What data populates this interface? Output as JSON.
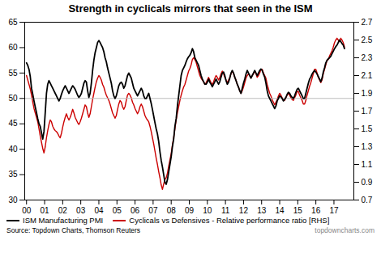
{
  "chart_data": {
    "type": "line",
    "title": "Strength in cyclicals mirrors that seen in the ISM",
    "caption": "Source: Topdown Charts, Thomson Reuters",
    "watermark": "topdowncharts.com",
    "grid": false,
    "legend": "bottom",
    "hline": 50,
    "hline_color": "#bbbbbb",
    "xlim": [
      1999.9,
      2018.1
    ],
    "xticks": [
      {
        "value": 2000,
        "label": "00"
      },
      {
        "value": 2001,
        "label": "01"
      },
      {
        "value": 2002,
        "label": "02"
      },
      {
        "value": 2003,
        "label": "03"
      },
      {
        "value": 2004,
        "label": "04"
      },
      {
        "value": 2005,
        "label": "05"
      },
      {
        "value": 2006,
        "label": "06"
      },
      {
        "value": 2007,
        "label": "07"
      },
      {
        "value": 2008,
        "label": "08"
      },
      {
        "value": 2009,
        "label": "09"
      },
      {
        "value": 2010,
        "label": "10"
      },
      {
        "value": 2011,
        "label": "11"
      },
      {
        "value": 2012,
        "label": "12"
      },
      {
        "value": 2013,
        "label": "13"
      },
      {
        "value": 2014,
        "label": "14"
      },
      {
        "value": 2015,
        "label": "15"
      },
      {
        "value": 2016,
        "label": "16"
      },
      {
        "value": 2017,
        "label": "17"
      }
    ],
    "ylim": [
      30,
      65
    ],
    "yticks": [
      30,
      35,
      40,
      45,
      50,
      55,
      60,
      65
    ],
    "y2lim": [
      0.7,
      2.7
    ],
    "y2ticks": [
      0.7,
      0.9,
      1.1,
      1.3,
      1.5,
      1.7,
      1.9,
      2.1,
      2.3,
      2.5,
      2.7
    ],
    "x": [
      2000,
      2000.069,
      2000.1379,
      2000.2069,
      2000.2758,
      2000.3448,
      2000.4137,
      2000.4827,
      2000.5516,
      2000.6206,
      2000.6895,
      2000.7585,
      2000.8274,
      2000.8964,
      2000.9653,
      2001.0343,
      2001.1032,
      2001.1722,
      2001.2412,
      2001.3101,
      2001.3791,
      2001.448,
      2001.517,
      2001.5859,
      2001.6549,
      2001.7238,
      2001.7928,
      2001.8617,
      2001.9307,
      2001.9996,
      2002.0686,
      2002.1375,
      2002.2065,
      2002.2754,
      2002.3444,
      2002.4134,
      2002.4823,
      2002.5513,
      2002.6202,
      2002.6892,
      2002.7581,
      2002.8271,
      2002.896,
      2002.965,
      2003.0339,
      2003.1029,
      2003.1718,
      2003.2408,
      2003.3097,
      2003.3787,
      2003.4476,
      2003.5166,
      2003.5856,
      2003.6545,
      2003.7235,
      2003.7924,
      2003.8614,
      2003.9303,
      2003.9993,
      2004.0682,
      2004.1372,
      2004.2061,
      2004.2751,
      2004.344,
      2004.413,
      2004.4819,
      2004.5509,
      2004.6198,
      2004.6888,
      2004.7578,
      2004.8267,
      2004.8957,
      2004.9646,
      2005.0336,
      2005.1025,
      2005.1715,
      2005.2404,
      2005.3094,
      2005.3783,
      2005.4473,
      2005.5162,
      2005.5852,
      2005.6541,
      2005.7231,
      2005.792,
      2005.861,
      2005.93,
      2005.9989,
      2006.0679,
      2006.1368,
      2006.2058,
      2006.2747,
      2006.3437,
      2006.4126,
      2006.4816,
      2006.5505,
      2006.6195,
      2006.6884,
      2006.7574,
      2006.8263,
      2006.8953,
      2006.9642,
      2007.0332,
      2007.1022,
      2007.1711,
      2007.2401,
      2007.309,
      2007.378,
      2007.4469,
      2007.5159,
      2007.5848,
      2007.6538,
      2007.7227,
      2007.7917,
      2007.8606,
      2007.9296,
      2007.9985,
      2008.0675,
      2008.1364,
      2008.2054,
      2008.2744,
      2008.3433,
      2008.4123,
      2008.4812,
      2008.5502,
      2008.6191,
      2008.6881,
      2008.757,
      2008.826,
      2008.8949,
      2008.9639,
      2009.0328,
      2009.1018,
      2009.1707,
      2009.2397,
      2009.3086,
      2009.3776,
      2009.4466,
      2009.5155,
      2009.5845,
      2009.6534,
      2009.7224,
      2009.7913,
      2009.8603,
      2009.9292,
      2009.9982,
      2010.0671,
      2010.1361,
      2010.205,
      2010.274,
      2010.3429,
      2010.4119,
      2010.4808,
      2010.5498,
      2010.6188,
      2010.6877,
      2010.7567,
      2010.8256,
      2010.8946,
      2010.9635,
      2011.0325,
      2011.1014,
      2011.1704,
      2011.2393,
      2011.3083,
      2011.3772,
      2011.4462,
      2011.5151,
      2011.5841,
      2011.653,
      2011.722,
      2011.791,
      2011.8599,
      2011.9289,
      2011.9978,
      2012.0668,
      2012.1357,
      2012.2047,
      2012.2736,
      2012.3426,
      2012.4115,
      2012.4805,
      2012.5494,
      2012.6184,
      2012.6873,
      2012.7563,
      2012.8252,
      2012.8942,
      2012.9632,
      2013.0321,
      2013.1011,
      2013.17,
      2013.239,
      2013.3079,
      2013.3769,
      2013.4458,
      2013.5148,
      2013.5837,
      2013.6527,
      2013.7216,
      2013.7906,
      2013.8595,
      2013.9285,
      2013.9974,
      2014.0664,
      2014.1354,
      2014.2043,
      2014.2733,
      2014.3422,
      2014.4112,
      2014.4801,
      2014.5491,
      2014.618,
      2014.687,
      2014.7559,
      2014.8249,
      2014.8938,
      2014.9628,
      2015.0317,
      2015.1007,
      2015.1696,
      2015.2386,
      2015.3076,
      2015.3765,
      2015.4455,
      2015.5144,
      2015.5834,
      2015.6523,
      2015.7213,
      2015.7902,
      2015.8592,
      2015.9281,
      2015.9971,
      2016.066,
      2016.135,
      2016.2039,
      2016.2729,
      2016.3418,
      2016.4108,
      2016.4798,
      2016.5487,
      2016.6177,
      2016.6866,
      2016.7556,
      2016.8245,
      2016.8935,
      2016.9624,
      2017.0314,
      2017.1003,
      2017.1693,
      2017.2382,
      2017.3072,
      2017.3761,
      2017.4451,
      2017.514,
      2017.583
    ],
    "series": [
      {
        "name": "ISM Manufacturing PMI",
        "color": "#000000",
        "values": [
          57.0,
          56.5,
          55.7,
          54.3,
          52.0,
          50.8,
          49.5,
          48.3,
          47.2,
          46.0,
          45.0,
          44.5,
          43.2,
          42.0,
          43.5,
          47.2,
          51.0,
          52.8,
          53.5,
          53.0,
          52.5,
          52.0,
          51.5,
          51.0,
          50.5,
          50.0,
          49.5,
          50.0,
          50.8,
          51.5,
          52.0,
          52.5,
          52.0,
          51.5,
          51.0,
          51.5,
          52.0,
          52.5,
          52.2,
          51.8,
          51.2,
          50.6,
          50.2,
          50.5,
          51.0,
          52.0,
          53.0,
          53.5,
          53.2,
          51.5,
          50.2,
          51.0,
          53.0,
          55.5,
          57.5,
          59.0,
          60.0,
          61.0,
          61.4,
          61.0,
          60.5,
          60.0,
          59.2,
          58.0,
          57.2,
          56.0,
          55.0,
          54.0,
          53.0,
          51.5,
          50.5,
          50.0,
          50.5,
          51.5,
          52.5,
          53.0,
          53.2,
          52.8,
          52.0,
          52.5,
          53.5,
          54.5,
          55.0,
          54.5,
          54.0,
          53.0,
          52.0,
          51.5,
          51.0,
          50.5,
          51.0,
          51.5,
          52.0,
          51.5,
          50.5,
          50.0,
          50.0,
          50.5,
          51.0,
          50.0,
          49.0,
          47.8,
          46.5,
          45.2,
          44.0,
          43.0,
          41.5,
          39.5,
          37.8,
          36.5,
          35.0,
          33.5,
          33.1,
          34.0,
          35.5,
          37.0,
          38.5,
          40.5,
          42.0,
          44.5,
          46.0,
          48.5,
          50.5,
          52.5,
          54.5,
          55.5,
          56.0,
          56.5,
          57.2,
          57.8,
          58.2,
          58.5,
          59.0,
          59.8,
          59.2,
          58.0,
          57.5,
          57.0,
          56.5,
          55.5,
          54.5,
          53.8,
          53.3,
          52.8,
          52.8,
          53.2,
          53.8,
          53.2,
          52.8,
          52.3,
          52.8,
          53.3,
          53.8,
          53.3,
          52.8,
          53.3,
          54.2,
          55.0,
          55.2,
          54.5,
          53.5,
          52.8,
          53.2,
          54.0,
          55.0,
          55.5,
          55.0,
          54.2,
          53.5,
          52.8,
          52.2,
          51.5,
          51.0,
          52.0,
          53.0,
          53.8,
          54.8,
          55.5,
          55.0,
          54.5,
          54.0,
          54.5,
          55.0,
          55.5,
          55.0,
          54.5,
          55.0,
          55.5,
          55.8,
          55.5,
          54.8,
          54.2,
          53.0,
          51.5,
          50.5,
          50.0,
          49.5,
          49.0,
          48.5,
          48.0,
          48.5,
          49.5,
          50.0,
          50.5,
          50.3,
          50.0,
          49.5,
          49.8,
          50.2,
          50.8,
          51.2,
          51.0,
          50.5,
          50.2,
          50.0,
          50.5,
          51.2,
          51.8,
          52.0,
          51.5,
          51.0,
          50.5,
          50.0,
          50.0,
          51.0,
          52.0,
          53.0,
          53.8,
          54.2,
          54.8,
          55.2,
          55.5,
          55.2,
          54.8,
          54.3,
          53.8,
          53.3,
          54.0,
          55.2,
          56.0,
          57.0,
          57.5,
          57.8,
          58.0,
          58.3,
          58.8,
          59.3,
          59.8,
          60.2,
          60.5,
          61.0,
          61.5,
          61.2,
          60.8,
          60.5,
          59.8
        ]
      },
      {
        "name": "Cyclicals vs Defensives - Relative performance ratio [RHS]",
        "color": "#cc0000",
        "axis": "y2",
        "values": [
          2.1,
          2.05,
          2.0,
          1.95,
          1.88,
          1.8,
          1.73,
          1.68,
          1.63,
          1.58,
          1.5,
          1.42,
          1.35,
          1.28,
          1.23,
          1.3,
          1.4,
          1.48,
          1.55,
          1.6,
          1.58,
          1.53,
          1.5,
          1.48,
          1.47,
          1.45,
          1.42,
          1.4,
          1.45,
          1.52,
          1.58,
          1.63,
          1.67,
          1.63,
          1.6,
          1.63,
          1.67,
          1.72,
          1.68,
          1.63,
          1.6,
          1.57,
          1.55,
          1.58,
          1.62,
          1.67,
          1.72,
          1.77,
          1.75,
          1.68,
          1.63,
          1.67,
          1.75,
          1.83,
          1.9,
          1.97,
          2.03,
          2.07,
          2.1,
          2.08,
          2.05,
          2.0,
          1.97,
          1.92,
          1.88,
          1.85,
          1.82,
          1.78,
          1.73,
          1.68,
          1.65,
          1.62,
          1.65,
          1.72,
          1.78,
          1.82,
          1.8,
          1.75,
          1.72,
          1.75,
          1.82,
          1.88,
          1.9,
          1.88,
          1.85,
          1.8,
          1.77,
          1.73,
          1.7,
          1.67,
          1.7,
          1.75,
          1.78,
          1.75,
          1.7,
          1.65,
          1.62,
          1.6,
          1.58,
          1.53,
          1.47,
          1.4,
          1.33,
          1.25,
          1.17,
          1.1,
          1.02,
          0.95,
          0.87,
          0.82,
          0.88,
          0.93,
          0.95,
          1.0,
          1.08,
          1.15,
          1.22,
          1.32,
          1.4,
          1.5,
          1.6,
          1.68,
          1.75,
          1.82,
          1.88,
          1.93,
          1.97,
          2.0,
          2.05,
          2.1,
          2.15,
          2.18,
          2.22,
          2.28,
          2.3,
          2.28,
          2.25,
          2.2,
          2.15,
          2.1,
          2.07,
          2.05,
          2.03,
          2.0,
          2.02,
          2.05,
          2.08,
          2.05,
          2.02,
          2.0,
          2.03,
          2.07,
          2.1,
          2.08,
          2.05,
          2.08,
          2.12,
          2.15,
          2.12,
          2.08,
          2.05,
          2.02,
          2.05,
          2.08,
          2.12,
          2.15,
          2.12,
          2.08,
          2.05,
          2.0,
          1.97,
          1.93,
          1.9,
          1.93,
          1.97,
          2.02,
          2.07,
          2.1,
          2.12,
          2.1,
          2.07,
          2.1,
          2.12,
          2.15,
          2.12,
          2.08,
          2.1,
          2.13,
          2.17,
          2.17,
          2.13,
          2.1,
          2.07,
          2.0,
          1.95,
          1.9,
          1.87,
          1.83,
          1.8,
          1.77,
          1.8,
          1.83,
          1.87,
          1.9,
          1.88,
          1.85,
          1.82,
          1.82,
          1.85,
          1.88,
          1.9,
          1.88,
          1.85,
          1.83,
          1.82,
          1.85,
          1.88,
          1.92,
          1.92,
          1.88,
          1.85,
          1.82,
          1.78,
          1.78,
          1.82,
          1.88,
          1.93,
          1.98,
          2.02,
          2.07,
          2.12,
          2.17,
          2.17,
          2.13,
          2.08,
          2.05,
          2.02,
          2.05,
          2.12,
          2.17,
          2.22,
          2.27,
          2.28,
          2.32,
          2.35,
          2.38,
          2.42,
          2.47,
          2.5,
          2.52,
          2.5,
          2.48,
          2.52,
          2.5,
          2.47,
          2.42
        ]
      }
    ]
  }
}
